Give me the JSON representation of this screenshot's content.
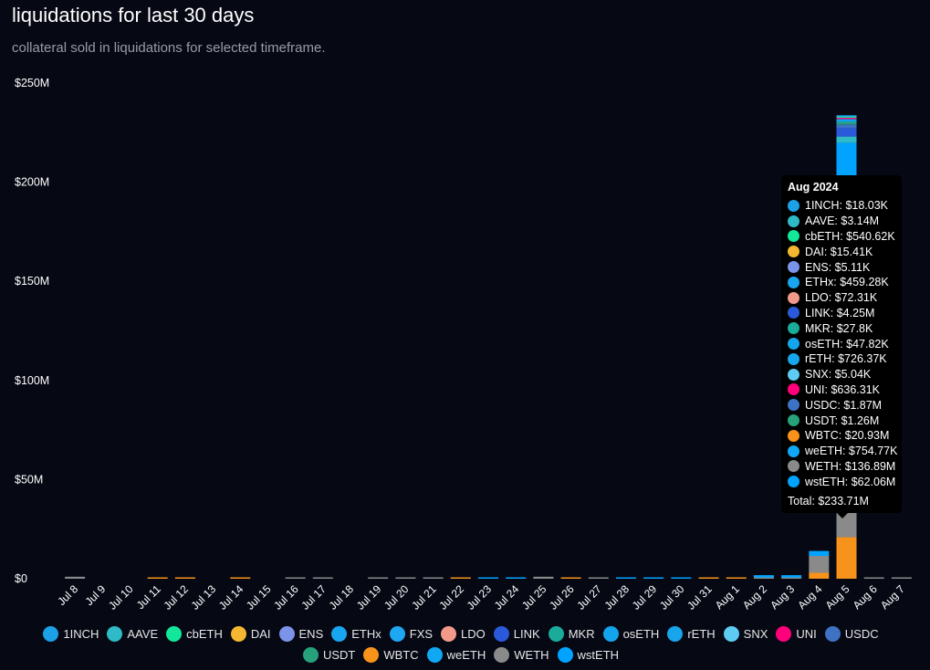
{
  "header": {
    "title": "liquidations for last 30 days",
    "subtitle": "collateral sold in liquidations for selected timeframe."
  },
  "colors": {
    "1INCH": "#1ca0e6",
    "AAVE": "#2ebac6",
    "cbETH": "#12e79a",
    "DAI": "#f4b731",
    "ENS": "#7b93e8",
    "ETHx": "#18a6f0",
    "FXS": "#1ea7f2",
    "LDO": "#f2998a",
    "LINK": "#2a5ada",
    "MKR": "#1aab9b",
    "osETH": "#12a4ec",
    "rETH": "#17a5ec",
    "SNX": "#5ecbf2",
    "UNI": "#ff007a",
    "USDC": "#3e73c4",
    "USDT": "#26a17b",
    "WBTC": "#f7931a",
    "weETH": "#10a8f5",
    "WETH": "#8a8a8a",
    "wstETH": "#00a3ff"
  },
  "legend": [
    "1INCH",
    "AAVE",
    "cbETH",
    "DAI",
    "ENS",
    "ETHx",
    "FXS",
    "LDO",
    "LINK",
    "MKR",
    "osETH",
    "rETH",
    "SNX",
    "UNI",
    "USDC",
    "USDT",
    "WBTC",
    "weETH",
    "WETH",
    "wstETH"
  ],
  "chart_data": {
    "type": "bar",
    "stacked": true,
    "title": "liquidations for last 30 days",
    "subtitle": "collateral sold in liquidations for selected timeframe.",
    "categories": [
      "Jul 8",
      "Jul 9",
      "Jul 10",
      "Jul 11",
      "Jul 12",
      "Jul 13",
      "Jul 14",
      "Jul 15",
      "Jul 16",
      "Jul 17",
      "Jul 18",
      "Jul 19",
      "Jul 20",
      "Jul 21",
      "Jul 22",
      "Jul 23",
      "Jul 24",
      "Jul 25",
      "Jul 26",
      "Jul 27",
      "Jul 28",
      "Jul 29",
      "Jul 30",
      "Jul 31",
      "Aug 1",
      "Aug 2",
      "Aug 3",
      "Aug 4",
      "Aug 5",
      "Aug 6",
      "Aug 7"
    ],
    "ylim": [
      0,
      250000000
    ],
    "yticks": [
      {
        "value": 0,
        "label": "$0"
      },
      {
        "value": 50000000,
        "label": "$50M"
      },
      {
        "value": 100000000,
        "label": "$100M"
      },
      {
        "value": 150000000,
        "label": "$150M"
      },
      {
        "value": 200000000,
        "label": "$200M"
      },
      {
        "value": 250000000,
        "label": "$250M"
      }
    ],
    "grid": false,
    "legend_position": "bottom",
    "series": [
      {
        "name": "WBTC",
        "values": [
          0,
          0,
          0,
          400000.0,
          400000.0,
          0,
          300000.0,
          0,
          0,
          0,
          0,
          0,
          0,
          0,
          300000.0,
          0,
          0,
          0,
          300000.0,
          0,
          0,
          0,
          0,
          300000.0,
          400000.0,
          0,
          0,
          3000000.0,
          20930000.0,
          0,
          0
        ]
      },
      {
        "name": "WETH",
        "values": [
          1000000.0,
          0,
          0,
          0,
          0,
          0,
          0,
          0,
          300000.0,
          300000.0,
          0,
          200000.0,
          300000.0,
          300000.0,
          0,
          0,
          0,
          1000000.0,
          0,
          200000.0,
          0,
          0,
          0,
          0,
          0,
          600000.0,
          600000.0,
          8500000.0,
          136890000.0,
          200000.0,
          200000.0
        ]
      },
      {
        "name": "wstETH",
        "values": [
          0,
          0,
          0,
          0,
          0,
          0,
          0,
          0,
          0,
          0,
          0,
          0,
          0,
          0,
          0,
          300000.0,
          300000.0,
          0,
          0,
          0,
          200000.0,
          200000.0,
          300000.0,
          0,
          0,
          1200000.0,
          1200000.0,
          2500000.0,
          62060000.0,
          0,
          0
        ]
      },
      {
        "name": "AAVE",
        "values": [
          0,
          0,
          0,
          0,
          0,
          0,
          0,
          0,
          0,
          0,
          0,
          0,
          0,
          0,
          0,
          0,
          0,
          0,
          0,
          0,
          0,
          0,
          0,
          0,
          0,
          0,
          0,
          0,
          3140000.0,
          0,
          0
        ]
      },
      {
        "name": "LINK",
        "values": [
          0,
          0,
          0,
          0,
          0,
          0,
          0,
          0,
          0,
          0,
          0,
          0,
          0,
          0,
          0,
          0,
          0,
          0,
          0,
          0,
          0,
          0,
          0,
          0,
          0,
          0,
          0,
          0,
          4250000.0,
          0,
          0
        ]
      },
      {
        "name": "USDC",
        "values": [
          0,
          0,
          0,
          0,
          0,
          0,
          0,
          0,
          0,
          0,
          0,
          0,
          0,
          0,
          0,
          0,
          0,
          0,
          0,
          0,
          0,
          0,
          0,
          0,
          0,
          0,
          0,
          0,
          1870000.0,
          0,
          0
        ]
      },
      {
        "name": "USDT",
        "values": [
          0,
          0,
          0,
          0,
          0,
          0,
          0,
          0,
          0,
          0,
          0,
          0,
          0,
          0,
          0,
          0,
          0,
          0,
          0,
          0,
          0,
          0,
          0,
          0,
          0,
          0,
          0,
          0,
          1260000.0,
          0,
          0
        ]
      },
      {
        "name": "weETH",
        "values": [
          0,
          0,
          0,
          0,
          0,
          0,
          0,
          0,
          0,
          0,
          0,
          0,
          0,
          0,
          0,
          0,
          0,
          0,
          0,
          0,
          0,
          0,
          0,
          0,
          0,
          0,
          0,
          0,
          754770.0,
          0,
          0
        ]
      },
      {
        "name": "rETH",
        "values": [
          0,
          0,
          0,
          0,
          0,
          0,
          0,
          0,
          0,
          0,
          0,
          0,
          0,
          0,
          0,
          0,
          0,
          0,
          0,
          0,
          0,
          0,
          0,
          0,
          0,
          0,
          0,
          0,
          726370.0,
          0,
          0
        ]
      },
      {
        "name": "UNI",
        "values": [
          0,
          0,
          0,
          0,
          0,
          0,
          0,
          0,
          0,
          0,
          0,
          0,
          0,
          0,
          0,
          0,
          0,
          0,
          0,
          0,
          0,
          0,
          0,
          0,
          0,
          0,
          0,
          0,
          636310.0,
          0,
          0
        ]
      },
      {
        "name": "cbETH",
        "values": [
          0,
          0,
          0,
          0,
          0,
          0,
          0,
          0,
          0,
          0,
          0,
          0,
          0,
          0,
          0,
          0,
          0,
          0,
          0,
          0,
          0,
          0,
          0,
          0,
          0,
          0,
          0,
          0,
          540620.0,
          0,
          0
        ]
      },
      {
        "name": "ETHx",
        "values": [
          0,
          0,
          0,
          0,
          0,
          0,
          0,
          0,
          0,
          0,
          0,
          0,
          0,
          0,
          0,
          0,
          0,
          0,
          0,
          0,
          0,
          0,
          0,
          0,
          0,
          0,
          0,
          0,
          459280.0,
          0,
          0
        ]
      }
    ],
    "tooltip": {
      "title": "Aug 2024",
      "items": [
        {
          "name": "1INCH",
          "label": "1INCH: $18.03K"
        },
        {
          "name": "AAVE",
          "label": "AAVE: $3.14M"
        },
        {
          "name": "cbETH",
          "label": "cbETH: $540.62K"
        },
        {
          "name": "DAI",
          "label": "DAI: $15.41K"
        },
        {
          "name": "ENS",
          "label": "ENS: $5.11K"
        },
        {
          "name": "ETHx",
          "label": "ETHx: $459.28K"
        },
        {
          "name": "LDO",
          "label": "LDO: $72.31K"
        },
        {
          "name": "LINK",
          "label": "LINK: $4.25M"
        },
        {
          "name": "MKR",
          "label": "MKR: $27.8K"
        },
        {
          "name": "osETH",
          "label": "osETH: $47.82K"
        },
        {
          "name": "rETH",
          "label": "rETH: $726.37K"
        },
        {
          "name": "SNX",
          "label": "SNX: $5.04K"
        },
        {
          "name": "UNI",
          "label": "UNI: $636.31K"
        },
        {
          "name": "USDC",
          "label": "USDC: $1.87M"
        },
        {
          "name": "USDT",
          "label": "USDT: $1.26M"
        },
        {
          "name": "WBTC",
          "label": "WBTC: $20.93M"
        },
        {
          "name": "weETH",
          "label": "weETH: $754.77K"
        },
        {
          "name": "WETH",
          "label": "WETH: $136.89M"
        },
        {
          "name": "wstETH",
          "label": "wstETH: $62.06M"
        }
      ],
      "total": "Total: $233.71M"
    }
  }
}
